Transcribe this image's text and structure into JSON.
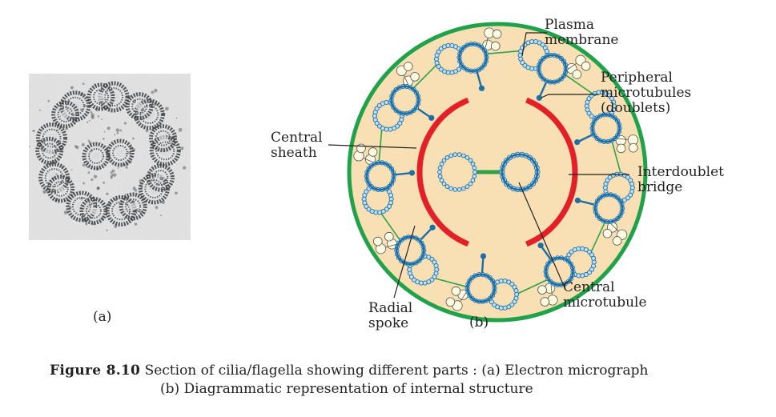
{
  "labels": {
    "plasma_membrane_1": "Plasma",
    "plasma_membrane_2": "membrane",
    "peripheral_1": "Peripheral",
    "peripheral_2": "microtubules",
    "peripheral_3": "(doublets)",
    "central_sheath_1": "Central",
    "central_sheath_2": "sheath",
    "interdoublet_1": "Interdoublet",
    "interdoublet_2": "bridge",
    "central_microtubule_1": "Central",
    "central_microtubule_2": "microtubule",
    "radial_spoke_1": "Radial",
    "radial_spoke_2": "spoke",
    "panel_a": "(a)",
    "panel_b": "(b)"
  },
  "caption": {
    "figure_number": "Figure 8.10",
    "text_line1": "Section of cilia/flagella showing different parts : (a) Electron micrograph",
    "text_line2": "(b) Diagrammatic representation of internal structure"
  },
  "colors": {
    "membrane": "#1fa24a",
    "cytoplasm": "#f8dfb4",
    "sheath": "#e32028",
    "microtubule_dark": "#1e6fa6",
    "microtubule_light": "#bfe0f2",
    "dynein_fill": "#fffbe0",
    "bridge": "#2ea24a"
  },
  "icons": {
    "micrograph": "electron-micrograph-image"
  }
}
